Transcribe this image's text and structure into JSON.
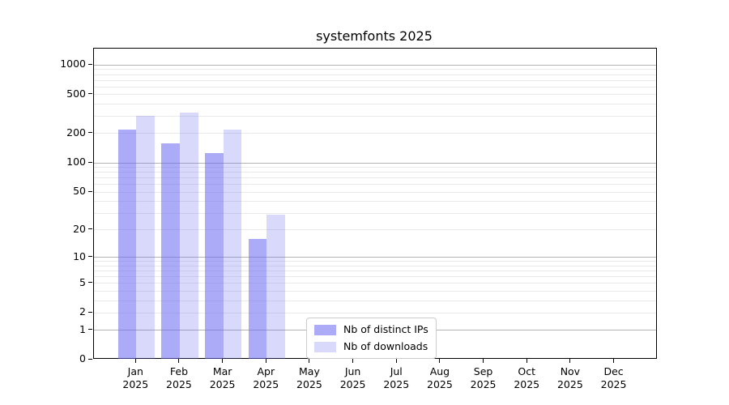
{
  "chart_data": {
    "type": "bar",
    "title": "systemfonts 2025",
    "xlabel": "",
    "ylabel": "",
    "x_year": "2025",
    "categories": [
      "Jan",
      "Feb",
      "Mar",
      "Apr",
      "May",
      "Jun",
      "Jul",
      "Aug",
      "Sep",
      "Oct",
      "Nov",
      "Dec"
    ],
    "series": [
      {
        "name": "Nb of distinct IPs",
        "color": "rgba(102,102,240,0.55)",
        "values": [
          220,
          158,
          125,
          16,
          null,
          null,
          null,
          null,
          null,
          null,
          null,
          null
        ]
      },
      {
        "name": "Nb of downloads",
        "color": "rgba(102,102,240,0.25)",
        "values": [
          305,
          330,
          220,
          29,
          null,
          null,
          null,
          null,
          null,
          null,
          null,
          null
        ]
      }
    ],
    "yscale": "log1p",
    "ylim": [
      0,
      1470
    ],
    "yticks": [
      {
        "label": "1000",
        "value": 1000
      },
      {
        "label": "500",
        "value": 500
      },
      {
        "label": "200",
        "value": 200
      },
      {
        "label": "100",
        "value": 100
      },
      {
        "label": "50",
        "value": 50
      },
      {
        "label": "20",
        "value": 20
      },
      {
        "label": "10",
        "value": 10
      },
      {
        "label": "5",
        "value": 5
      },
      {
        "label": "2",
        "value": 2
      },
      {
        "label": "1",
        "value": 1
      },
      {
        "label": "0",
        "value": 0
      }
    ],
    "grid": {
      "major_values": [
        1,
        10,
        100,
        1000
      ],
      "minor_values": [
        2,
        3,
        4,
        5,
        6,
        7,
        8,
        9,
        20,
        30,
        40,
        50,
        60,
        70,
        80,
        90,
        200,
        300,
        400,
        500,
        600,
        700,
        800,
        900
      ],
      "major_color": "#b3b3b3",
      "minor_color": "#e9e9e9"
    },
    "legend": {
      "position": "lower-center-left",
      "border_color": "#cccccc",
      "background": "#ffffff"
    },
    "colors": {
      "spine": "#000000",
      "text": "#000000"
    }
  }
}
